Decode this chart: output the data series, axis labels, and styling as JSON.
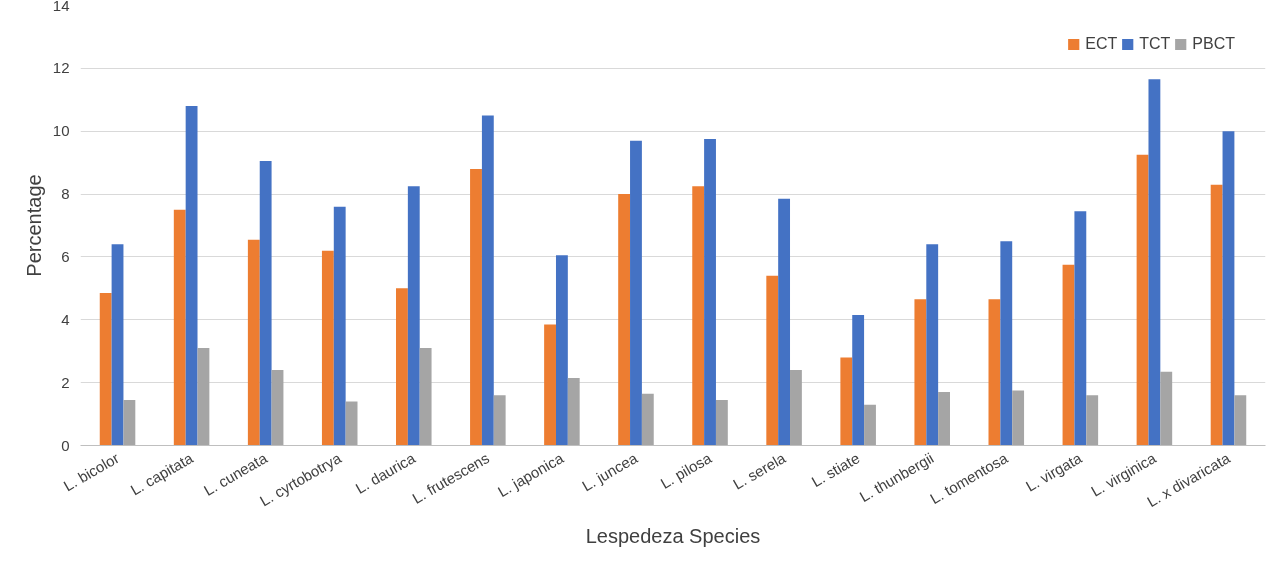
{
  "chart_data": {
    "type": "bar",
    "xlabel": "Lespedeza Species",
    "ylabel": "Percentage",
    "categories": [
      "L. bicolor",
      "L. capitata",
      "L. cuneata",
      "L. cyrtobotrya",
      "L. daurica",
      "L. frutescens",
      "L. japonica",
      "L. juncea",
      "L. pilosa",
      "L. serela",
      "L. stiate",
      "L. thunbergii",
      "L. tomentosa",
      "L. virgata",
      "L. virginica",
      "L. x divaricata"
    ],
    "series": [
      {
        "name": "ECT",
        "color": "#ed7d31",
        "values": [
          4.85,
          7.5,
          6.55,
          6.2,
          5.0,
          8.8,
          3.85,
          8.0,
          8.25,
          5.4,
          2.8,
          4.65,
          4.65,
          5.75,
          9.25,
          8.3
        ]
      },
      {
        "name": "TCT",
        "color": "#4472c4",
        "values": [
          6.4,
          10.8,
          9.05,
          7.6,
          8.25,
          10.5,
          6.05,
          9.7,
          9.75,
          7.85,
          4.15,
          6.4,
          6.5,
          7.45,
          11.65,
          10.0
        ]
      },
      {
        "name": "PBCT",
        "color": "#a5a5a5",
        "values": [
          1.45,
          3.1,
          2.4,
          1.4,
          3.1,
          1.6,
          2.15,
          1.65,
          1.45,
          2.4,
          1.3,
          1.7,
          1.75,
          1.6,
          2.35,
          1.6
        ]
      }
    ],
    "ylim": [
      0,
      14
    ],
    "yticks": [
      0,
      2,
      4,
      6,
      8,
      10,
      12,
      14
    ],
    "grid": "y",
    "legend": "top right"
  }
}
